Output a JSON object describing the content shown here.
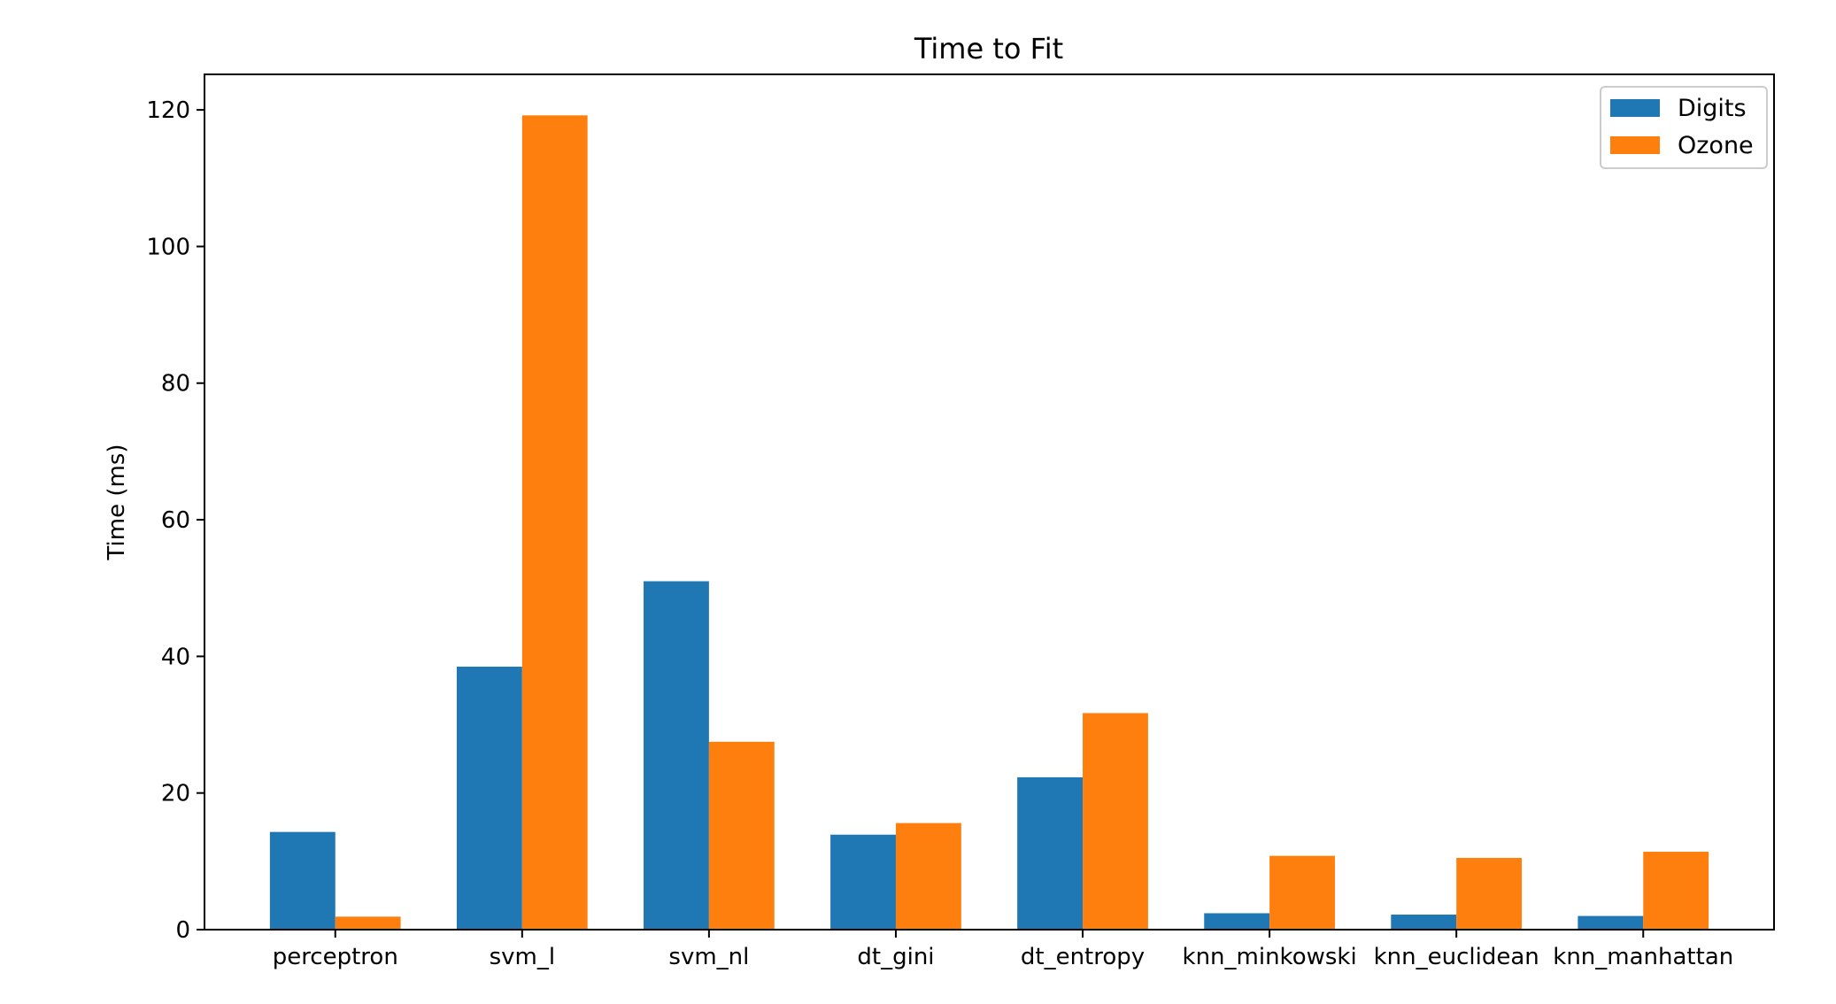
{
  "chart_data": {
    "type": "bar",
    "title": "Time to Fit",
    "xlabel": "",
    "ylabel": "Time (ms)",
    "categories": [
      "perceptron",
      "svm_l",
      "svm_nl",
      "dt_gini",
      "dt_entropy",
      "knn_minkowski",
      "knn_euclidean",
      "knn_manhattan"
    ],
    "series": [
      {
        "name": "Digits",
        "color": "#1f77b4",
        "values": [
          14.3,
          38.5,
          51.0,
          13.9,
          22.3,
          2.4,
          2.2,
          2.0
        ]
      },
      {
        "name": "Ozone",
        "color": "#ff7f0e",
        "values": [
          1.9,
          119.2,
          27.5,
          15.6,
          31.7,
          10.8,
          10.5,
          11.4
        ]
      }
    ],
    "ylim": [
      0,
      125.2
    ],
    "yticks": [
      0,
      20,
      40,
      60,
      80,
      100,
      120
    ],
    "grid": false,
    "legend_position": "top-right"
  }
}
